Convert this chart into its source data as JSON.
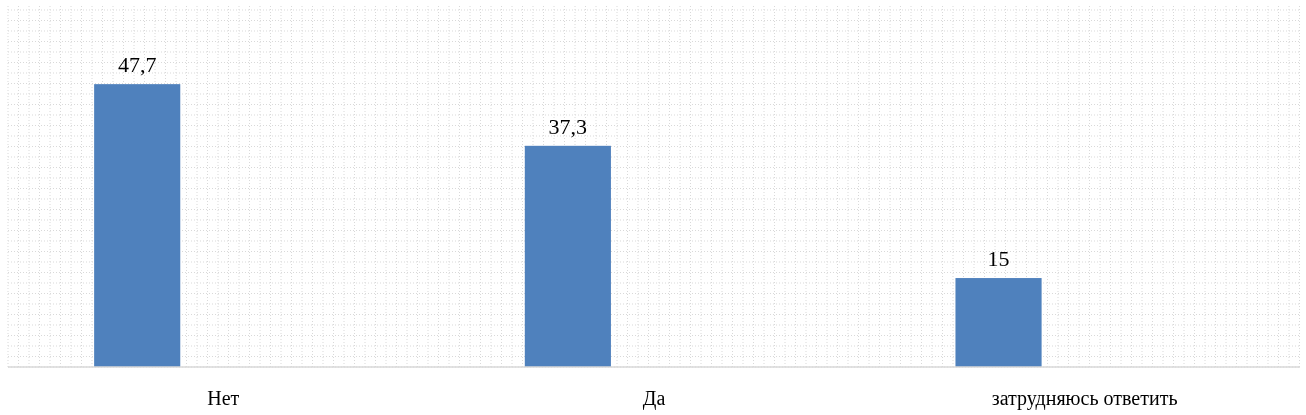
{
  "chart_data": {
    "type": "bar",
    "categories": [
      "Нет",
      "Да",
      "затрудняюсь ответить"
    ],
    "values": [
      47.7,
      37.3,
      15
    ],
    "value_labels": [
      "47,7",
      "37,3",
      "15"
    ],
    "color": "#4f81bd",
    "grid": true
  }
}
